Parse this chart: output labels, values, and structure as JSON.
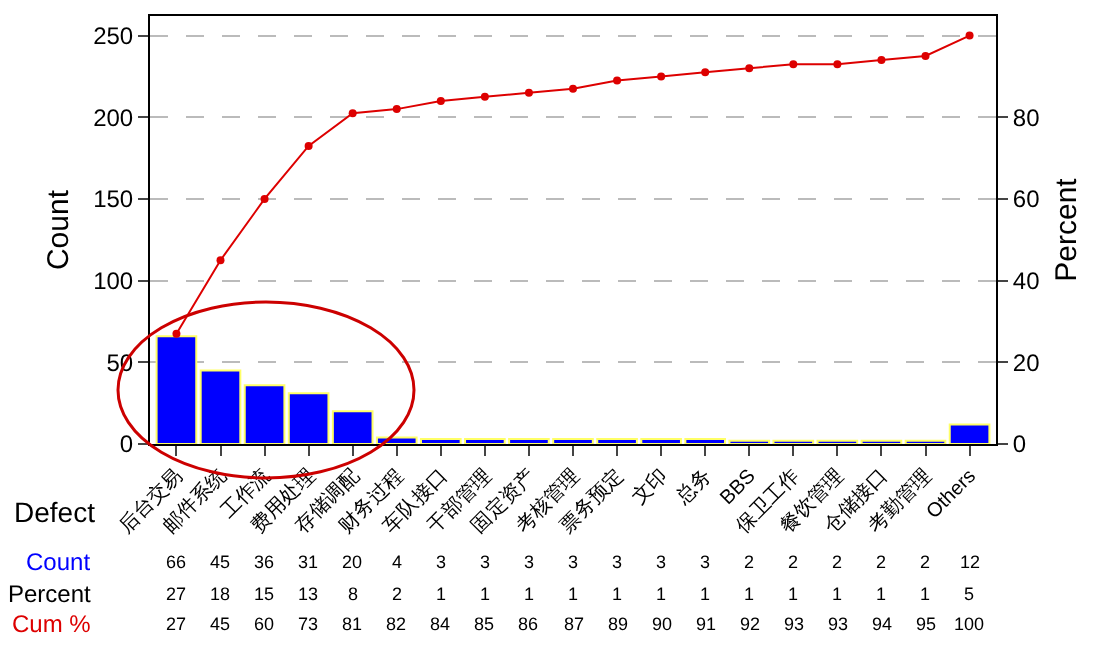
{
  "chart_data": {
    "type": "bar",
    "xlabel": "Defect",
    "ylabel": "Count",
    "y2label": "Percent",
    "categories": [
      "后台交易",
      "邮件系统",
      "工作流",
      "费用处理",
      "存储调配",
      "财务过程",
      "车队接口",
      "干部管理",
      "固定资产",
      "考核管理",
      "票务预定",
      "文印",
      "总务",
      "BBS",
      "保卫工作",
      "餐饮管理",
      "仓储接口",
      "考勤管理",
      "Others"
    ],
    "series": [
      {
        "name": "Count",
        "color": "#0000ff",
        "values": [
          66,
          45,
          36,
          31,
          20,
          4,
          3,
          3,
          3,
          3,
          3,
          3,
          3,
          2,
          2,
          2,
          2,
          2,
          12
        ]
      },
      {
        "name": "Cum %",
        "type": "line",
        "axis": "y2",
        "color": "#dd0000",
        "marker": "circle",
        "values": [
          27,
          45,
          60,
          73,
          81,
          82,
          84,
          85,
          86,
          87,
          89,
          90,
          91,
          92,
          93,
          93,
          94,
          95,
          100
        ]
      }
    ],
    "annotations": [
      "Percent",
      "27",
      "18",
      "15",
      "13",
      "8",
      "2",
      "1",
      "1",
      "1",
      "1",
      "1",
      "1",
      "1",
      "1",
      "1",
      "1",
      "1",
      "1",
      "5"
    ],
    "data_labels": true,
    "ylim": [
      0,
      262
    ],
    "yticks": [
      0,
      50,
      100,
      150,
      200,
      250
    ],
    "y2lim": [
      0,
      104.8
    ],
    "y2ticks": [
      0,
      20,
      40,
      60,
      80
    ],
    "grid": "y"
  }
}
